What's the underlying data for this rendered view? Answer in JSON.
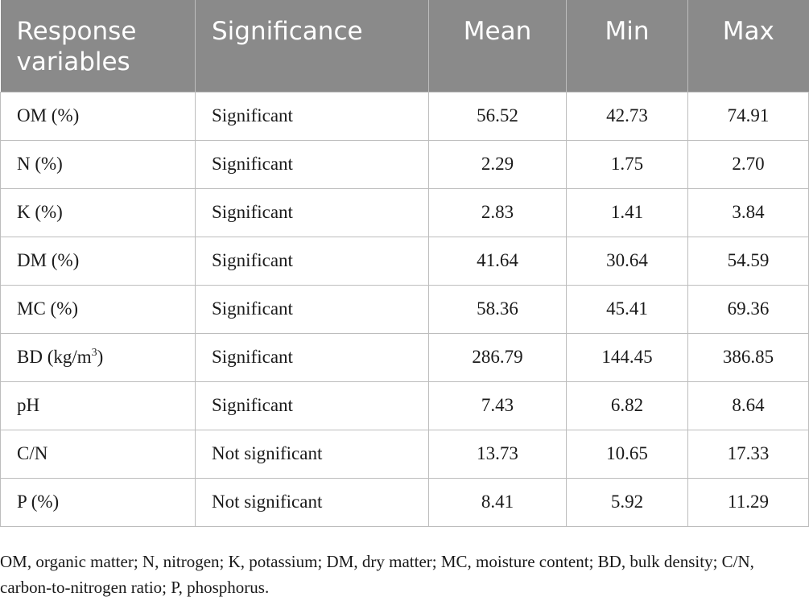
{
  "table": {
    "headers": {
      "response": "Response variables",
      "significance": "Significance",
      "mean": "Mean",
      "min": "Min",
      "max": "Max"
    },
    "rows": [
      {
        "variable": "OM (%)",
        "unit_sup": "",
        "unit_tail": "",
        "significance": "Significant",
        "mean": "56.52",
        "min": "42.73",
        "max": "74.91"
      },
      {
        "variable": "N (%)",
        "unit_sup": "",
        "unit_tail": "",
        "significance": "Significant",
        "mean": "2.29",
        "min": "1.75",
        "max": "2.70"
      },
      {
        "variable": "K (%)",
        "unit_sup": "",
        "unit_tail": "",
        "significance": "Significant",
        "mean": "2.83",
        "min": "1.41",
        "max": "3.84"
      },
      {
        "variable": "DM (%)",
        "unit_sup": "",
        "unit_tail": "",
        "significance": "Significant",
        "mean": "41.64",
        "min": "30.64",
        "max": "54.59"
      },
      {
        "variable": "MC (%)",
        "unit_sup": "",
        "unit_tail": "",
        "significance": "Significant",
        "mean": "58.36",
        "min": "45.41",
        "max": "69.36"
      },
      {
        "variable": "BD (kg/m",
        "unit_sup": "3",
        "unit_tail": ")",
        "significance": "Significant",
        "mean": "286.79",
        "min": "144.45",
        "max": "386.85"
      },
      {
        "variable": "pH",
        "unit_sup": "",
        "unit_tail": "",
        "significance": "Significant",
        "mean": "7.43",
        "min": "6.82",
        "max": "8.64"
      },
      {
        "variable": "C/N",
        "unit_sup": "",
        "unit_tail": "",
        "significance": "Not significant",
        "mean": "13.73",
        "min": "10.65",
        "max": "17.33"
      },
      {
        "variable": "P (%)",
        "unit_sup": "",
        "unit_tail": "",
        "significance": "Not significant",
        "mean": "8.41",
        "min": "5.92",
        "max": "11.29"
      }
    ]
  },
  "footnote": "OM, organic matter; N, nitrogen; K, potassium; DM, dry matter; MC, moisture content; BD, bulk density; C/N, carbon-to-nitrogen ratio; P, phosphorus.",
  "colors": {
    "header_bg": "#8a8a8a",
    "header_text": "#ffffff",
    "grid": "#bdbdbd"
  }
}
